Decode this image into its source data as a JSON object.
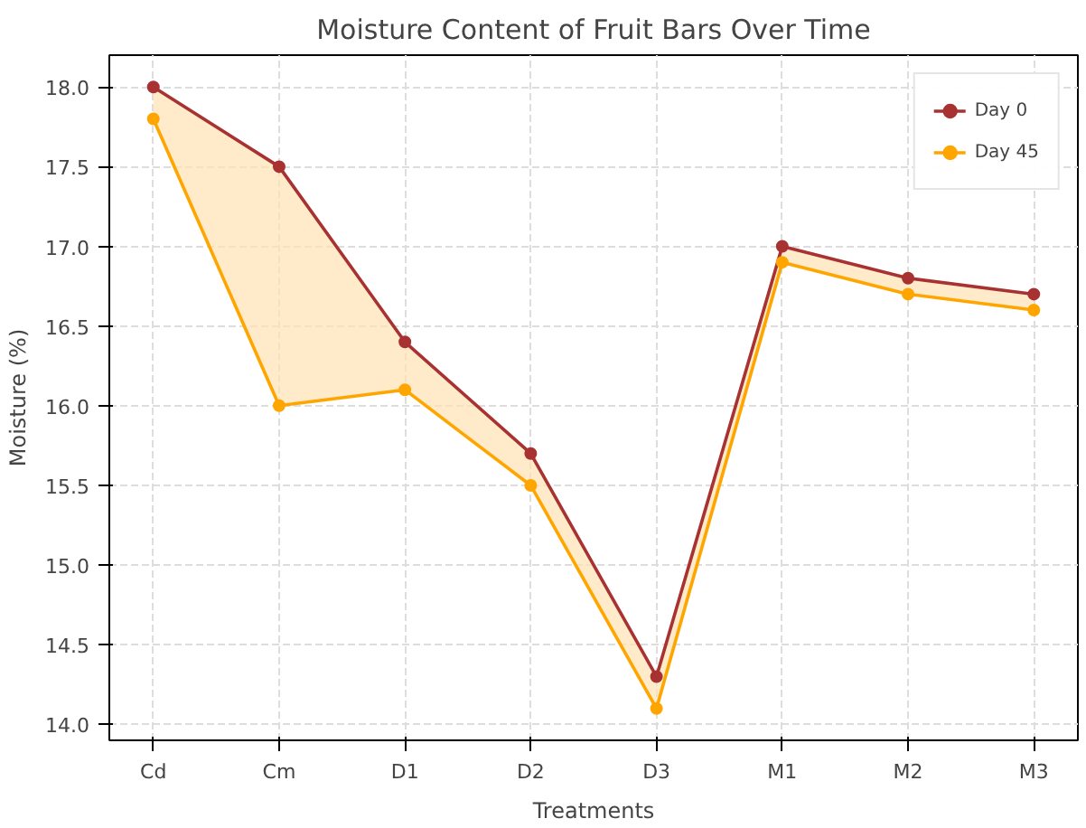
{
  "chart_data": {
    "type": "line",
    "title": "Moisture Content of Fruit Bars Over Time",
    "xlabel": "Treatments",
    "ylabel": "Moisture (%)",
    "categories": [
      "Cd",
      "Cm",
      "D1",
      "D2",
      "D3",
      "M1",
      "M2",
      "M3"
    ],
    "series": [
      {
        "name": "Day 0",
        "color": "#a83232",
        "values": [
          18.0,
          17.5,
          16.4,
          15.7,
          14.3,
          17.0,
          16.8,
          16.7
        ],
        "lower": [
          17.8,
          16.0,
          16.1,
          15.5,
          14.1,
          16.9,
          16.7,
          16.6
        ],
        "upper": [
          18.0,
          17.5,
          16.4,
          15.7,
          14.3,
          17.0,
          16.8,
          16.7
        ]
      },
      {
        "name": "Day 45",
        "color": "#ffa500",
        "values": [
          17.8,
          16.0,
          16.1,
          15.5,
          14.1,
          16.9,
          16.7,
          16.6
        ]
      }
    ],
    "ylim": [
      13.9,
      18.2
    ],
    "yticks": [
      {
        "value": 14,
        "label": "14.0"
      },
      {
        "value": 14.5,
        "label": "14.5"
      },
      {
        "value": 15,
        "label": "15.0"
      },
      {
        "value": 15.5,
        "label": "15.5"
      },
      {
        "value": 16,
        "label": "16.0"
      },
      {
        "value": 16.5,
        "label": "16.5"
      },
      {
        "value": 17,
        "label": "17.0"
      },
      {
        "value": 17.5,
        "label": "17.5"
      },
      {
        "value": 18,
        "label": "18.0"
      }
    ],
    "grid": true,
    "legend": "top right",
    "marker": "circle",
    "line_style": "solid"
  }
}
